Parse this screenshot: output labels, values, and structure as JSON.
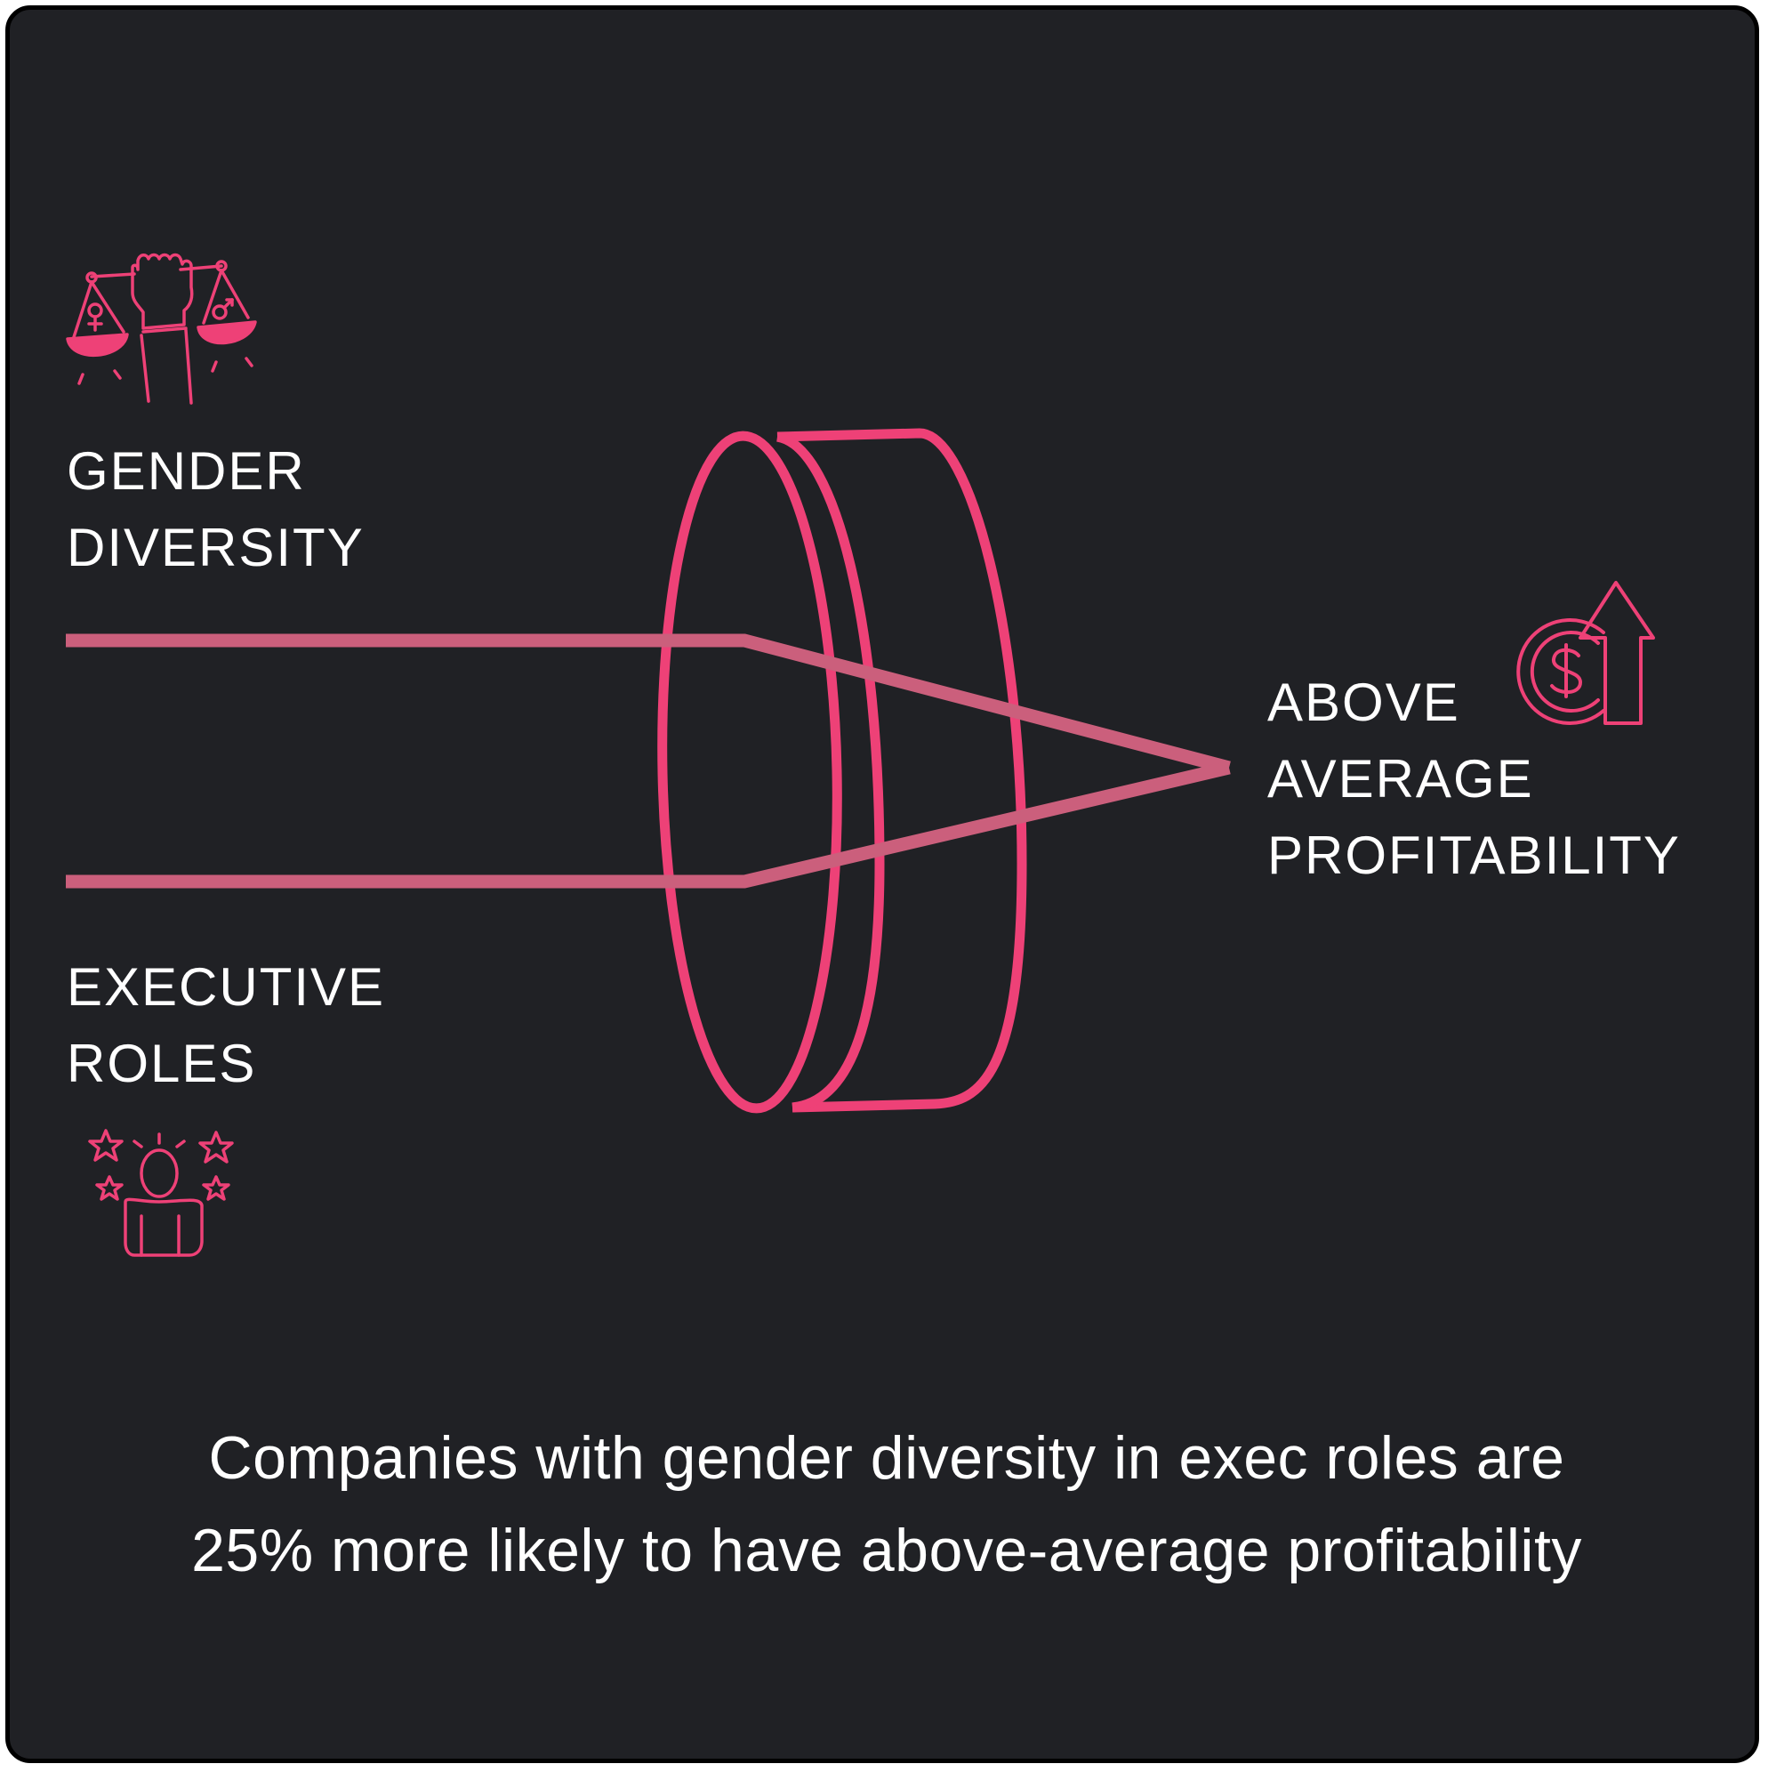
{
  "inputs": {
    "gender_diversity": {
      "line1": "GENDER",
      "line2": "DIVERSITY",
      "icon": "gender-equality-scale-icon"
    },
    "executive_roles": {
      "line1": "EXECUTIVE",
      "line2": "ROLES",
      "icon": "executive-person-stars-icon"
    }
  },
  "output": {
    "line1": "ABOVE",
    "line2": "AVERAGE",
    "line3": "PROFITABILITY",
    "icon": "dollar-coin-up-arrow-icon"
  },
  "lens_icon": "lens-icon",
  "caption": {
    "line1": "Companies with gender diversity in exec roles are",
    "line2": "25% more likely to have above-average profitability"
  },
  "colors": {
    "background": "#202125",
    "border": "#000000",
    "accent": "#ee4177",
    "beam": "#cb5f7c",
    "text": "#ffffff"
  }
}
